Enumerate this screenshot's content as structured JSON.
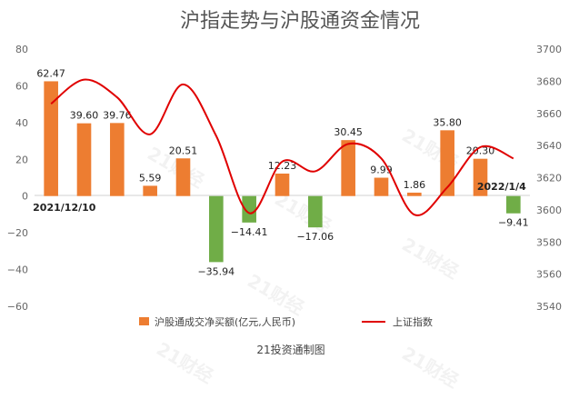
{
  "chart_data": {
    "type": "bar",
    "title": "沪指走势与沪股通资金情况",
    "categories": [
      "2021/12/10",
      "",
      "",
      "",
      "",
      "",
      "",
      "",
      "",
      "",
      "",
      "",
      "",
      "",
      "2022/1/4"
    ],
    "series": [
      {
        "name": "沪股通成交净买额(亿元,人民币)",
        "type": "bar",
        "values": [
          62.47,
          39.6,
          39.76,
          5.59,
          20.51,
          -35.94,
          -14.41,
          12.23,
          -17.06,
          30.45,
          9.99,
          1.86,
          35.8,
          20.3,
          -9.41
        ],
        "value_labels": [
          "62.47",
          "39.60",
          "39.76",
          "5.59",
          "20.51",
          "−35.94",
          "−14.41",
          "12.23",
          "−17.06",
          "30.45",
          "9.99",
          "1.86",
          "35.80",
          "20.30",
          "−9.41"
        ],
        "color_positive": "#ED7D31",
        "color_negative": "#70AD47"
      },
      {
        "name": "上证指数",
        "type": "line",
        "axis": "right",
        "values": [
          3666,
          3681,
          3670,
          3647,
          3678,
          3646,
          3598,
          3630,
          3624,
          3641,
          3632,
          3597,
          3614,
          3639,
          3632
        ],
        "color": "#E00000"
      }
    ],
    "y_left": {
      "min": -60,
      "max": 80,
      "ticks": [
        -60,
        -40,
        -20,
        0,
        20,
        40,
        60,
        80
      ],
      "tick_labels": [
        "−60",
        "−40",
        "−20",
        "0",
        "20",
        "40",
        "60",
        "80"
      ]
    },
    "y_right": {
      "min": 3540,
      "max": 3700,
      "ticks": [
        3540,
        3560,
        3580,
        3600,
        3620,
        3640,
        3660,
        3680,
        3700
      ]
    },
    "annotations": [
      "2021/12/10",
      "2022/1/4"
    ],
    "legend_position": "bottom",
    "source_label": "21投资通制图",
    "watermark": "21财经",
    "grid": false
  }
}
